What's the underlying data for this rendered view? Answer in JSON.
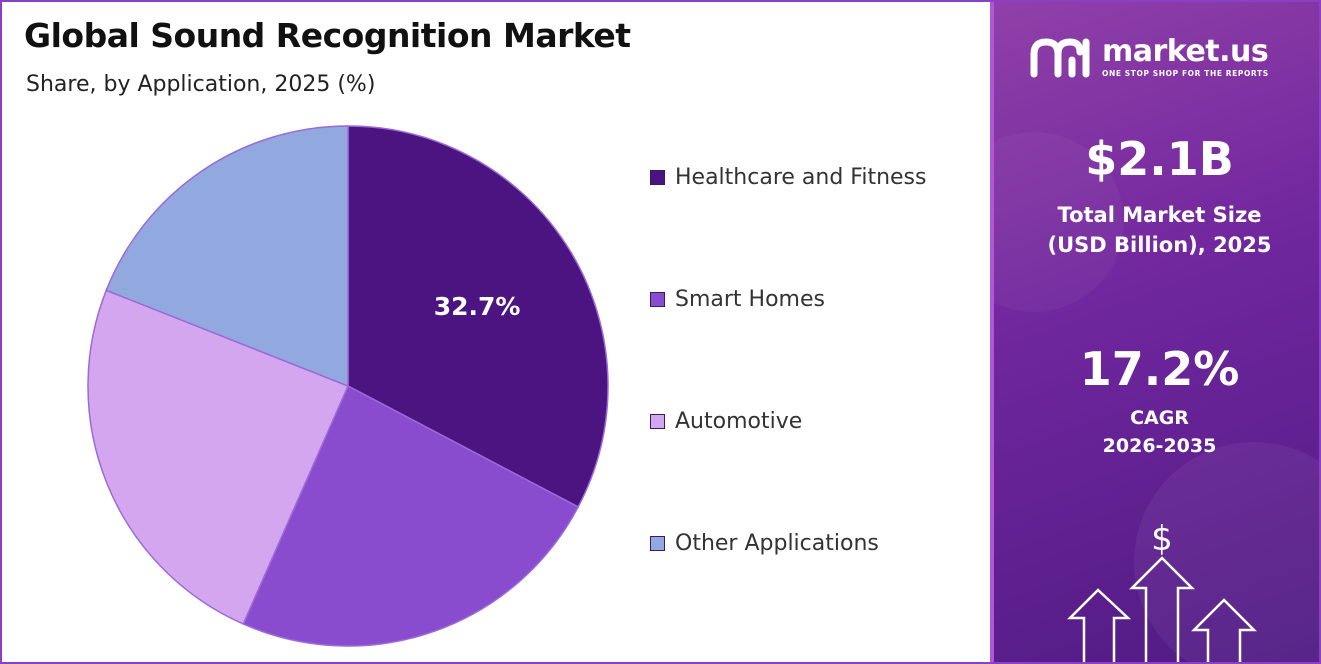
{
  "chart_data": {
    "type": "pie",
    "title": "Global Sound Recognition Market",
    "subtitle": "Share, by Application, 2025 (%)",
    "categories": [
      "Healthcare and Fitness",
      "Smart Homes",
      "Automotive",
      "Other Applications"
    ],
    "values": [
      32.7,
      23.9,
      24.4,
      19.0
    ],
    "data_labels": [
      "32.7%",
      "",
      "",
      ""
    ],
    "colors": [
      "#4c1480",
      "#8a4ccf",
      "#d4a6ef",
      "#91a9de"
    ],
    "legend_position": "right"
  },
  "panel": {
    "brand_name": "market.us",
    "brand_tagline": "ONE STOP SHOP FOR THE REPORTS",
    "market_size_value": "$2.1B",
    "market_size_label_line1": "Total Market Size",
    "market_size_label_line2": "(USD Billion), 2025",
    "cagr_value": "17.2%",
    "cagr_label_line1": "CAGR",
    "cagr_label_line2": "2026-2035",
    "dollar_symbol": "$",
    "icons": [
      "market-us-logo-icon",
      "dollar-icon",
      "up-arrow-icon"
    ]
  }
}
